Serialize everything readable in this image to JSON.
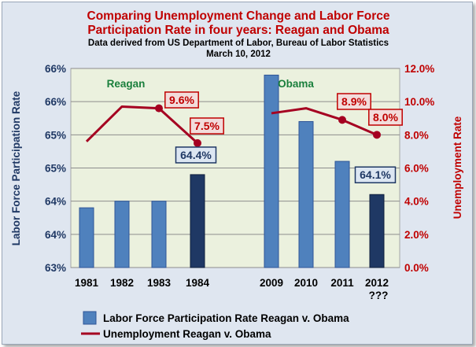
{
  "chart_data": {
    "type": "bar+line",
    "title_lines": [
      "Comparing Unemployment Change and Labor Force",
      "Participation Rate in four years: Reagan and Obama"
    ],
    "subtitle_lines": [
      "Data derived from US Department of Labor, Bureau of Labor Statistics",
      "March 10, 2012"
    ],
    "categories": [
      "1981",
      "1982",
      "1983",
      "1984",
      "",
      "2009",
      "2010",
      "2011",
      "2012"
    ],
    "category_sublabels": [
      "",
      "",
      "",
      "",
      "",
      "",
      "",
      "",
      "???"
    ],
    "section_labels": [
      {
        "text": "Reagan",
        "category_index": 0
      },
      {
        "text": "Obama",
        "category_index": 5
      }
    ],
    "left_axis": {
      "label": "Labor Force Participation Rate",
      "ylim": [
        63.0,
        66.0
      ],
      "tick_values": [
        63.0,
        63.5,
        64.0,
        64.5,
        65.0,
        65.5,
        66.0
      ],
      "tick_labels": [
        "63%",
        "64%",
        "64%",
        "65%",
        "65%",
        "66%",
        "66%"
      ]
    },
    "right_axis": {
      "label": "Unemployment Rate",
      "ylim": [
        0,
        12
      ],
      "tick_values": [
        0,
        2,
        4,
        6,
        8,
        10,
        12
      ],
      "tick_labels": [
        "0.0%",
        "2.0%",
        "4.0%",
        "6.0%",
        "8.0%",
        "10.0%",
        "12.0%"
      ]
    },
    "series": [
      {
        "name": "Labor Force Participation Rate Reagan v. Obama",
        "type": "bar",
        "axis": "left",
        "values": [
          63.9,
          64.0,
          64.0,
          64.4,
          null,
          65.9,
          65.2,
          64.6,
          64.1
        ],
        "highlight_indices": [
          3,
          8
        ],
        "data_labels": [
          {
            "index": 3,
            "text": "64.4%"
          },
          {
            "index": 8,
            "text": "64.1%"
          }
        ]
      },
      {
        "name": "Unemployment Reagan v. Obama",
        "type": "line",
        "axis": "right",
        "values": [
          7.6,
          9.7,
          9.6,
          7.5,
          null,
          9.3,
          9.6,
          8.9,
          8.0
        ],
        "marker_indices": [
          2,
          3,
          7,
          8
        ],
        "data_labels": [
          {
            "index": 2,
            "text": "9.6%"
          },
          {
            "index": 3,
            "text": "7.5%"
          },
          {
            "index": 7,
            "text": "8.9%"
          },
          {
            "index": 8,
            "text": "8.0%"
          }
        ]
      }
    ],
    "colors": {
      "bar": "#4f81bd",
      "bar_highlight": "#1f3864",
      "line": "#a50021",
      "plot_bg": "#ebf1de",
      "frame_bg": "#dfe6f0",
      "title": "#c00000",
      "section_label": "#1a7f3c",
      "red_label_bg": "#f2dcdb",
      "blue_label_bg": "#dce6f2"
    },
    "legend_position": "bottom",
    "grid": true
  }
}
